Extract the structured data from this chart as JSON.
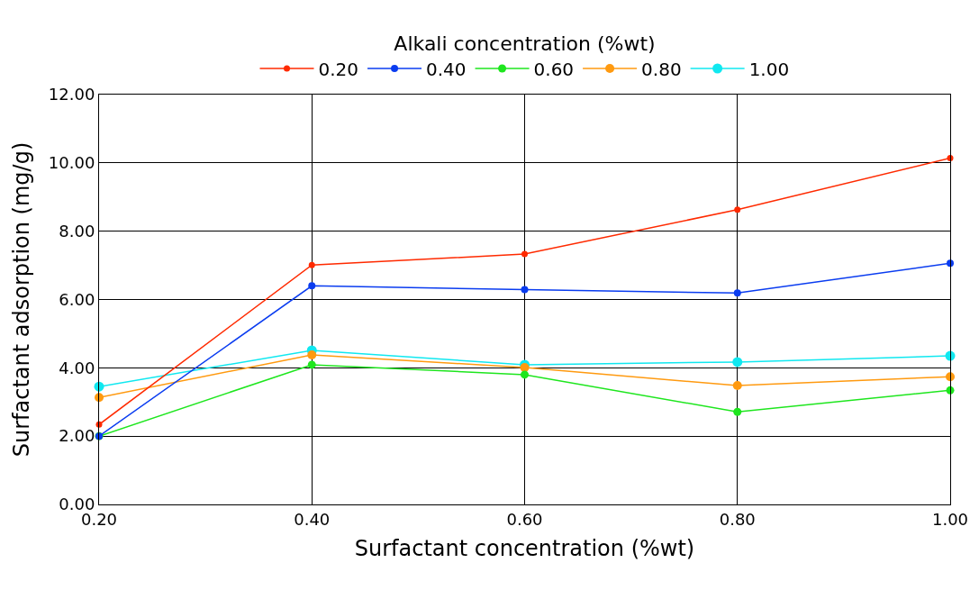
{
  "chart_data": {
    "type": "line",
    "xlabel": "Surfactant concentration (%wt)",
    "ylabel": "Surfactant adsorption (mg/g)",
    "legend_title": "Alkali concentration (%wt)",
    "legend": "top",
    "grid": true,
    "marker": "circle",
    "line_style": "solid",
    "x": [
      0.2,
      0.4,
      0.6,
      0.8,
      1.0
    ],
    "xlim": [
      0.2,
      1.0
    ],
    "xticks": [
      {
        "value": 0.2,
        "label": "0.20"
      },
      {
        "value": 0.4,
        "label": "0.40"
      },
      {
        "value": 0.6,
        "label": "0.60"
      },
      {
        "value": 0.8,
        "label": "0.80"
      },
      {
        "value": 1.0,
        "label": "1.00"
      }
    ],
    "ylim": [
      0,
      12
    ],
    "yticks": [
      {
        "value": 0,
        "label": "0.00"
      },
      {
        "value": 2,
        "label": "2.00"
      },
      {
        "value": 4,
        "label": "4.00"
      },
      {
        "value": 6,
        "label": "6.00"
      },
      {
        "value": 8,
        "label": "8.00"
      },
      {
        "value": 10,
        "label": "10.00"
      },
      {
        "value": 12,
        "label": "12.00"
      }
    ],
    "series": [
      {
        "name": "0.20",
        "color": "#ff2a00",
        "values": [
          2.34,
          7.01,
          7.33,
          8.63,
          10.14
        ]
      },
      {
        "name": "0.40",
        "color": "#0a3cf0",
        "values": [
          2.0,
          6.4,
          6.29,
          6.19,
          7.06
        ]
      },
      {
        "name": "0.60",
        "color": "#1ee61e",
        "values": [
          2.0,
          4.09,
          3.8,
          2.71,
          3.34
        ]
      },
      {
        "name": "0.80",
        "color": "#ff9a10",
        "values": [
          3.13,
          4.38,
          4.01,
          3.48,
          3.74
        ]
      },
      {
        "name": "1.00",
        "color": "#10e8f0",
        "values": [
          3.45,
          4.51,
          4.09,
          4.17,
          4.35
        ]
      }
    ]
  }
}
